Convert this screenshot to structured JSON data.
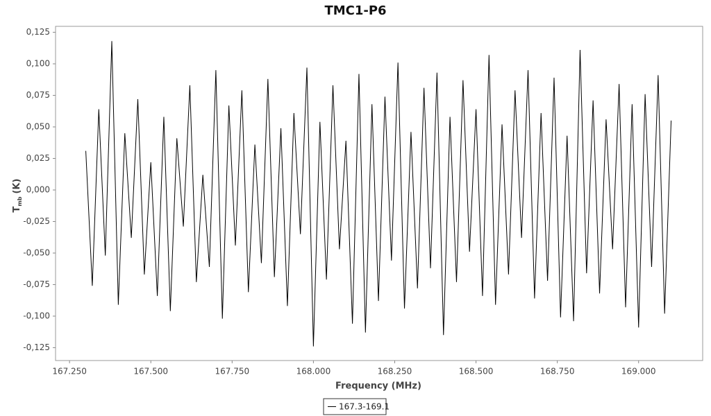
{
  "chart_data": {
    "type": "line",
    "title": "TMC1-P6",
    "x_label": "Frequency (MHz)",
    "y_label": {
      "main": "T",
      "sub": "mb",
      "unit": "(K)"
    },
    "x": [
      167.3,
      167.32,
      167.34,
      167.36,
      167.38,
      167.4,
      167.42,
      167.44,
      167.46,
      167.48,
      167.5,
      167.52,
      167.54,
      167.56,
      167.58,
      167.6,
      167.62,
      167.64,
      167.66,
      167.68,
      167.7,
      167.72,
      167.74,
      167.76,
      167.78,
      167.8,
      167.82,
      167.84,
      167.86,
      167.88,
      167.9,
      167.92,
      167.94,
      167.96,
      167.98,
      168.0,
      168.02,
      168.04,
      168.06,
      168.08,
      168.1,
      168.12,
      168.14,
      168.16,
      168.18,
      168.2,
      168.22,
      168.24,
      168.26,
      168.28,
      168.3,
      168.32,
      168.34,
      168.36,
      168.38,
      168.4,
      168.42,
      168.44,
      168.46,
      168.48,
      168.5,
      168.52,
      168.54,
      168.56,
      168.58,
      168.6,
      168.62,
      168.64,
      168.66,
      168.68,
      168.7,
      168.72,
      168.74,
      168.76,
      168.78,
      168.8,
      168.82,
      168.84,
      168.86,
      168.88,
      168.9,
      168.92,
      168.94,
      168.96,
      168.98,
      169.0,
      169.02,
      169.04,
      169.06,
      169.08,
      169.1
    ],
    "series": [
      {
        "name": "167.3-169.1",
        "color": "#000000",
        "values": [
          0.031,
          -0.076,
          0.064,
          -0.052,
          0.118,
          -0.091,
          0.045,
          -0.038,
          0.072,
          -0.067,
          0.022,
          -0.084,
          0.058,
          -0.096,
          0.041,
          -0.029,
          0.083,
          -0.073,
          0.012,
          -0.061,
          0.095,
          -0.102,
          0.067,
          -0.044,
          0.079,
          -0.081,
          0.036,
          -0.058,
          0.088,
          -0.069,
          0.049,
          -0.092,
          0.061,
          -0.035,
          0.097,
          -0.124,
          0.054,
          -0.071,
          0.083,
          -0.047,
          0.039,
          -0.106,
          0.092,
          -0.113,
          0.068,
          -0.088,
          0.074,
          -0.056,
          0.101,
          -0.094,
          0.046,
          -0.078,
          0.081,
          -0.062,
          0.093,
          -0.115,
          0.058,
          -0.073,
          0.087,
          -0.049,
          0.064,
          -0.084,
          0.107,
          -0.091,
          0.052,
          -0.067,
          0.079,
          -0.038,
          0.095,
          -0.086,
          0.061,
          -0.072,
          0.089,
          -0.101,
          0.043,
          -0.104,
          0.111,
          -0.066,
          0.071,
          -0.082,
          0.056,
          -0.047,
          0.084,
          -0.093,
          0.068,
          -0.109,
          0.076,
          -0.061,
          0.091,
          -0.098,
          0.055
        ]
      }
    ],
    "xlim": [
      167.207,
      169.197
    ],
    "ylim": [
      -0.1352,
      0.1297
    ],
    "xticks": [
      {
        "value": 167.25,
        "label": "167.250"
      },
      {
        "value": 167.5,
        "label": "167.500"
      },
      {
        "value": 167.75,
        "label": "167.750"
      },
      {
        "value": 168.0,
        "label": "168.000"
      },
      {
        "value": 168.25,
        "label": "168.250"
      },
      {
        "value": 168.5,
        "label": "168.500"
      },
      {
        "value": 168.75,
        "label": "168.750"
      },
      {
        "value": 169.0,
        "label": "169.000"
      }
    ],
    "yticks": [
      {
        "value": -0.125,
        "label": "-0,125"
      },
      {
        "value": -0.1,
        "label": "-0,100"
      },
      {
        "value": -0.075,
        "label": "-0,075"
      },
      {
        "value": -0.05,
        "label": "-0,050"
      },
      {
        "value": -0.025,
        "label": "-0,025"
      },
      {
        "value": 0,
        "label": "0,000"
      },
      {
        "value": 0.025,
        "label": "0,025"
      },
      {
        "value": 0.05,
        "label": "0,050"
      },
      {
        "value": 0.075,
        "label": "0,075"
      },
      {
        "value": 0.1,
        "label": "0,100"
      },
      {
        "value": 0.125,
        "label": "0,125"
      }
    ],
    "legend": "bottom"
  }
}
